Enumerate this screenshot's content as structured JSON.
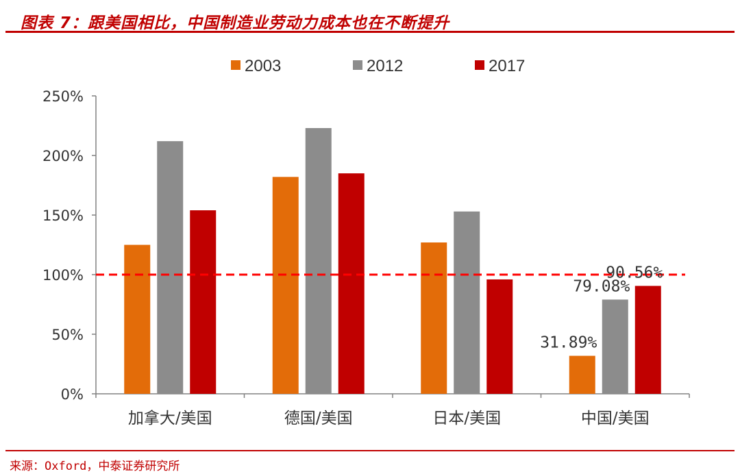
{
  "header": {
    "title": "图表 7：跟美国相比，中国制造业劳动力成本也在不断提升"
  },
  "footer": {
    "source": "来源：Oxford，中泰证券研究所"
  },
  "colors": {
    "accent": "#c00000",
    "s2003": "#e36c09",
    "s2012": "#8c8c8c",
    "s2017": "#c00000"
  },
  "chart_data": {
    "type": "bar",
    "categories": [
      "加拿大/美国",
      "德国/美国",
      "日本/美国",
      "中国/美国"
    ],
    "series": [
      {
        "name": "2003",
        "values": [
          125,
          182,
          127,
          31.89
        ]
      },
      {
        "name": "2012",
        "values": [
          212,
          223,
          153,
          79.08
        ]
      },
      {
        "name": "2017",
        "values": [
          154,
          185,
          96,
          90.56
        ]
      }
    ],
    "yticks": [
      "0%",
      "50%",
      "100%",
      "150%",
      "200%",
      "250%"
    ],
    "ylim": [
      0,
      250
    ],
    "reference_line": 100,
    "data_labels": [
      {
        "series": 0,
        "category": 3,
        "text": "31.89%"
      },
      {
        "series": 1,
        "category": 3,
        "text": "79.08%"
      },
      {
        "series": 2,
        "category": 3,
        "text": "90.56%"
      }
    ],
    "legend_position": "top-center",
    "grid": false
  }
}
